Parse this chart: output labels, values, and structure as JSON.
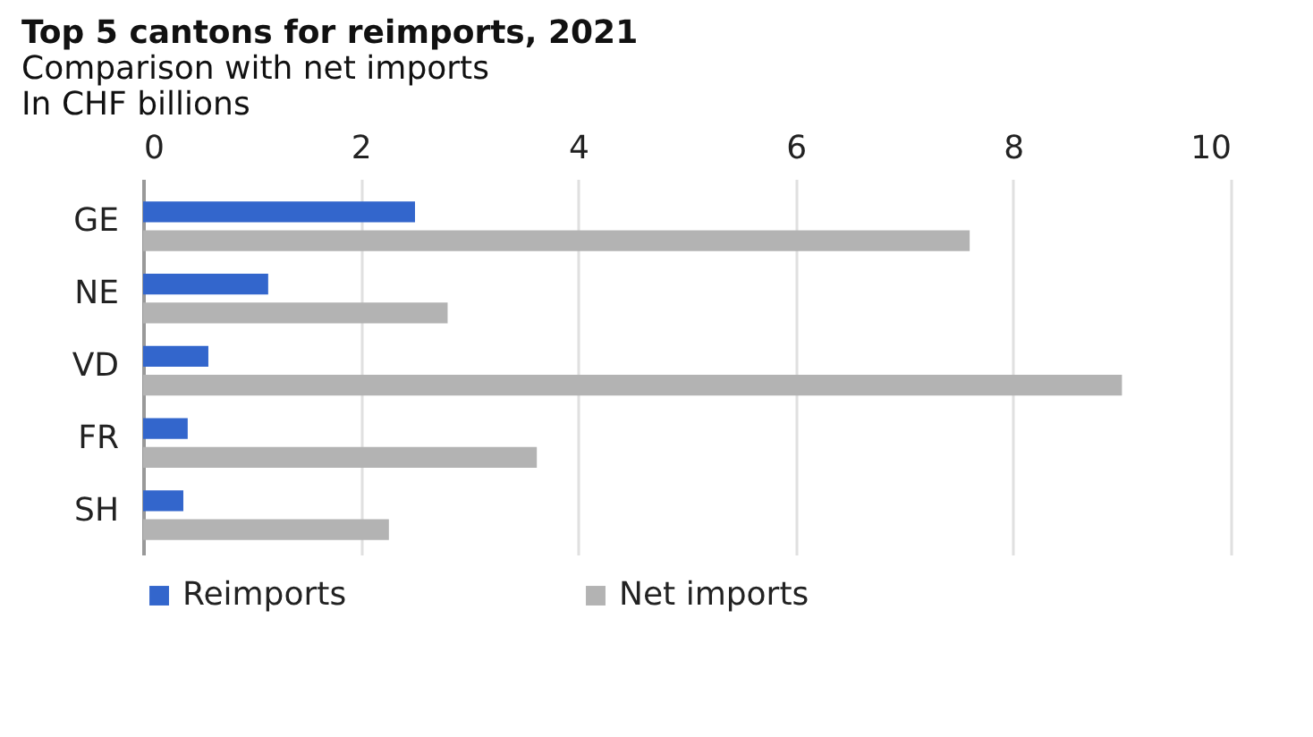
{
  "chart_data": {
    "type": "bar",
    "orientation": "horizontal",
    "title": "Top 5 cantons for reimports, 2021",
    "subtitle": "Comparison with net imports",
    "xlabel": "In CHF billions",
    "categories": [
      "GE",
      "NE",
      "VD",
      "FR",
      "SH"
    ],
    "series": [
      {
        "name": "Reimports",
        "color": "#3366cc",
        "values": [
          2.5,
          1.15,
          0.6,
          0.41,
          0.37
        ]
      },
      {
        "name": "Net imports",
        "color": "#b3b3b3",
        "values": [
          7.6,
          2.8,
          9.0,
          3.62,
          2.26
        ]
      }
    ],
    "xlim": [
      0,
      10
    ],
    "xticks": [
      0,
      2,
      4,
      6,
      8,
      10
    ],
    "grid": "x",
    "legend": "bottom"
  }
}
